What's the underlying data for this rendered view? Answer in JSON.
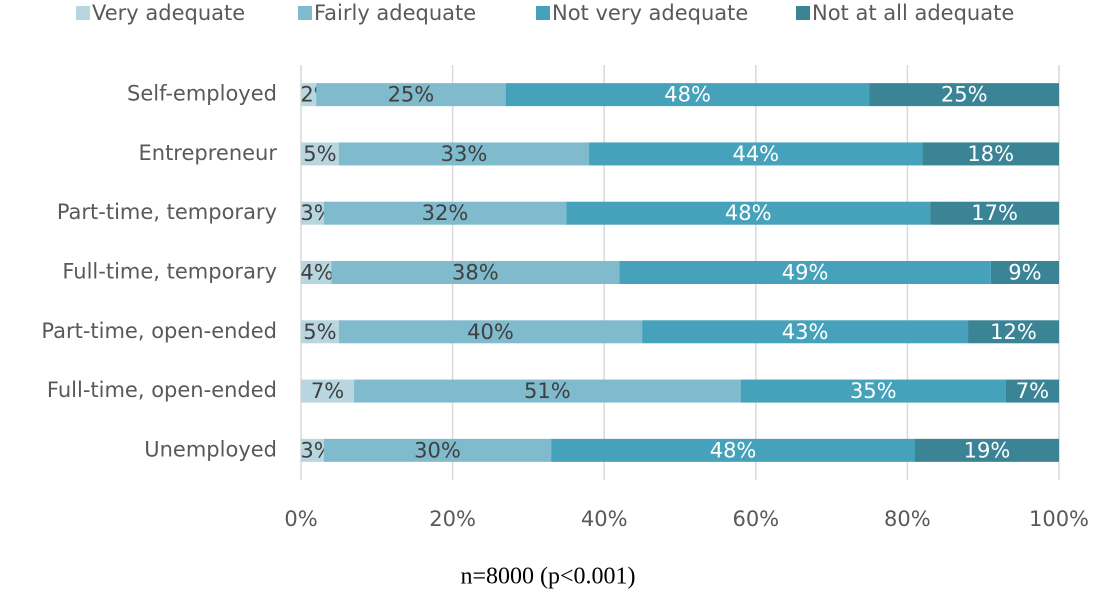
{
  "chart_data": {
    "type": "stacked-bar-horizontal",
    "categories": [
      "Self-employed",
      "Entrepreneur",
      "Part-time, temporary",
      "Full-time, temporary",
      "Part-time, open-ended",
      "Full-time, open-ended",
      "Unemployed"
    ],
    "series": [
      {
        "name": "Very adequate",
        "color": "#b7d6e0",
        "label_color": "#404040",
        "values": [
          2,
          5,
          3,
          4,
          5,
          7,
          3
        ],
        "value_labels": [
          "2%",
          "5%",
          "3%",
          "4%",
          "5%",
          "7%",
          "3%"
        ]
      },
      {
        "name": "Fairly adequate",
        "color": "#7fbacd",
        "label_color": "#404040",
        "values": [
          25,
          33,
          32,
          38,
          40,
          51,
          30
        ],
        "value_labels": [
          "25%",
          "33%",
          "32%",
          "38%",
          "40%",
          "51%",
          "30%"
        ]
      },
      {
        "name": "Not very adequate",
        "color": "#45a2ba",
        "label_color": "#ffffff",
        "values": [
          48,
          44,
          48,
          49,
          43,
          35,
          48
        ],
        "value_labels": [
          "48%",
          "44%",
          "48%",
          "49%",
          "43%",
          "35%",
          "48%"
        ]
      },
      {
        "name": "Not at all adequate",
        "color": "#3a8496",
        "label_color": "#ffffff",
        "values": [
          25,
          18,
          17,
          9,
          12,
          7,
          19
        ],
        "value_labels": [
          "25%",
          "18%",
          "17%",
          "9%",
          "12%",
          "7%",
          "19%"
        ]
      }
    ],
    "xlim": [
      0,
      100
    ],
    "xticks": [
      {
        "value": 0,
        "label": "0%"
      },
      {
        "value": 20,
        "label": "20%"
      },
      {
        "value": 40,
        "label": "40%"
      },
      {
        "value": 60,
        "label": "60%"
      },
      {
        "value": 80,
        "label": "80%"
      },
      {
        "value": 100,
        "label": "100%"
      }
    ],
    "grid": true,
    "legend": "top",
    "caption": "n=8000 (p<0.001)"
  }
}
